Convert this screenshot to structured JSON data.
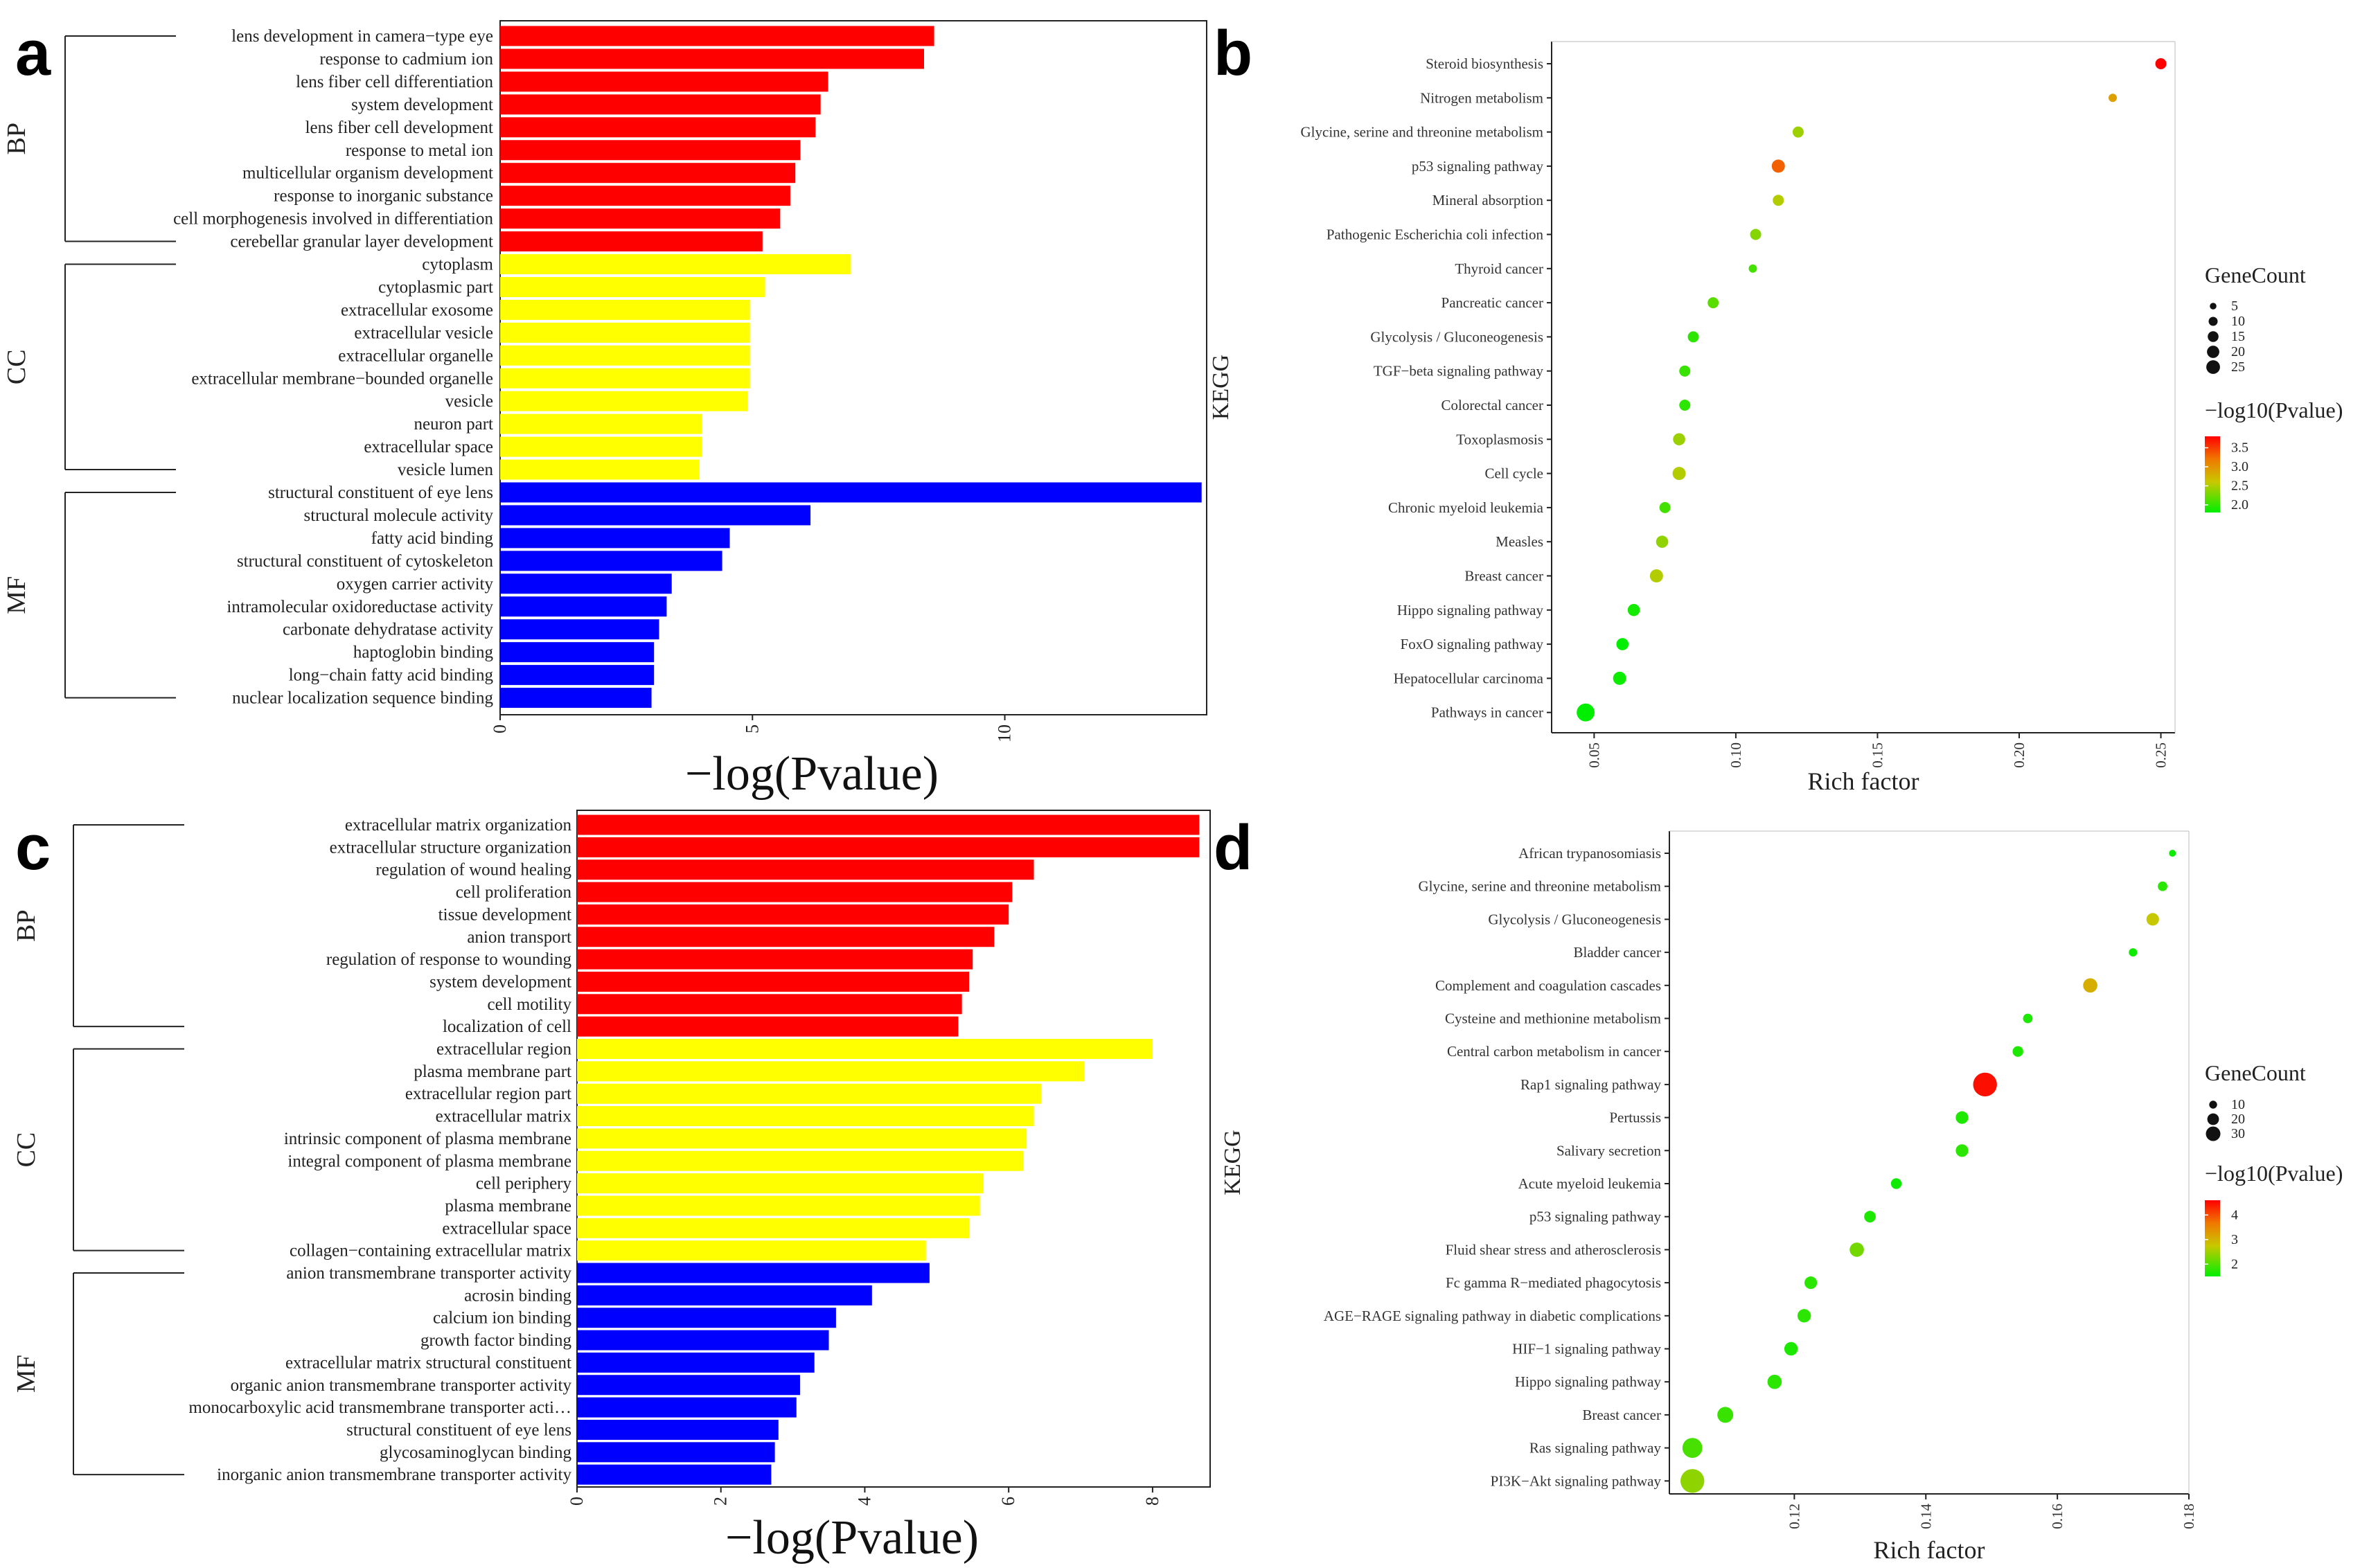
{
  "chart_data": [
    {
      "panel": "a",
      "type": "bar",
      "orientation": "horizontal",
      "xlabel": "−log(Pvalue)",
      "xlim": [
        0,
        14
      ],
      "xticks": [
        "0",
        "5",
        "10"
      ],
      "xtick_values": [
        0,
        5,
        10
      ],
      "groups": [
        {
          "name": "BP",
          "color": "#ff0000",
          "categories": [
            "lens development in camera−type eye",
            "response to cadmium ion",
            "lens fiber cell differentiation",
            "system development",
            "lens fiber cell development",
            "response to metal ion",
            "multicellular organism development",
            "response to inorganic substance",
            "cell morphogenesis involved in differentiation",
            "cerebellar granular layer development"
          ],
          "values": [
            8.6,
            8.4,
            6.5,
            6.35,
            6.25,
            5.95,
            5.85,
            5.75,
            5.55,
            5.2
          ]
        },
        {
          "name": "CC",
          "color": "#ffff00",
          "categories": [
            "cytoplasm",
            "cytoplasmic part",
            "extracellular exosome",
            "extracellular vesicle",
            "extracellular organelle",
            "extracellular membrane−bounded organelle",
            "vesicle",
            "neuron part",
            "extracellular space",
            "vesicle lumen"
          ],
          "values": [
            6.95,
            5.25,
            4.95,
            4.95,
            4.95,
            4.95,
            4.9,
            4.0,
            4.0,
            3.95
          ]
        },
        {
          "name": "MF",
          "color": "#0000ff",
          "categories": [
            "structural constituent of eye lens",
            "structural molecule activity",
            "fatty acid binding",
            "structural constituent of cytoskeleton",
            "oxygen carrier activity",
            "intramolecular oxidoreductase activity",
            "carbonate dehydratase activity",
            "haptoglobin binding",
            "long−chain fatty acid binding",
            "nuclear localization sequence binding"
          ],
          "values": [
            13.9,
            6.15,
            4.55,
            4.4,
            3.4,
            3.3,
            3.15,
            3.05,
            3.05,
            3.0
          ]
        }
      ]
    },
    {
      "panel": "b",
      "type": "scatter",
      "xlabel": "Rich factor",
      "ylabel": "KEGG",
      "xlim": [
        0.035,
        0.255
      ],
      "xticks": [
        "0.05",
        "0.10",
        "0.15",
        "0.20",
        "0.25"
      ],
      "xtick_values": [
        0.05,
        0.1,
        0.15,
        0.2,
        0.25
      ],
      "categories": [
        "Steroid biosynthesis",
        "Nitrogen metabolism",
        "Glycine, serine and threonine metabolism",
        "p53 signaling pathway",
        "Mineral absorption",
        "Pathogenic Escherichia coli infection",
        "Thyroid cancer",
        "Pancreatic cancer",
        "Glycolysis / Gluconeogenesis",
        "TGF−beta signaling pathway",
        "Colorectal cancer",
        "Toxoplasmosis",
        "Cell cycle",
        "Chronic myeloid leukemia",
        "Measles",
        "Breast cancer",
        "Hippo signaling pathway",
        "FoxO signaling pathway",
        "Hepatocellular carcinoma",
        "Pathways in cancer"
      ],
      "rich_factor": [
        0.25,
        0.233,
        0.122,
        0.115,
        0.115,
        0.107,
        0.106,
        0.092,
        0.085,
        0.082,
        0.082,
        0.08,
        0.08,
        0.075,
        0.074,
        0.072,
        0.064,
        0.06,
        0.059,
        0.047
      ],
      "gene_count": [
        4,
        2,
        4,
        6,
        4,
        4,
        2,
        4,
        4,
        4,
        4,
        5,
        6,
        4,
        5,
        6,
        5,
        5,
        6,
        12
      ],
      "neg_log10_p": [
        3.8,
        3.0,
        2.5,
        3.4,
        2.6,
        2.4,
        2.1,
        2.2,
        2.0,
        2.05,
        2.0,
        2.5,
        2.6,
        2.1,
        2.45,
        2.6,
        1.9,
        1.8,
        1.85,
        1.8
      ],
      "legend_size": {
        "title": "GeneCount",
        "labels": [
          "5",
          "10",
          "15",
          "20",
          "25"
        ],
        "values": [
          5,
          10,
          15,
          20,
          25
        ]
      },
      "legend_color": {
        "title": "−log10(Pvalue)",
        "labels": [
          "3.5",
          "3.0",
          "2.5",
          "2.0"
        ],
        "values": [
          3.5,
          3.0,
          2.5,
          2.0
        ],
        "min": 1.8,
        "max": 3.8
      }
    },
    {
      "panel": "c",
      "type": "bar",
      "orientation": "horizontal",
      "xlabel": "−log(Pvalue)",
      "xlim": [
        0,
        8.8
      ],
      "xticks": [
        "0",
        "2",
        "4",
        "6",
        "8"
      ],
      "xtick_values": [
        0,
        2,
        4,
        6,
        8
      ],
      "groups": [
        {
          "name": "BP",
          "color": "#ff0000",
          "categories": [
            "extracellular matrix organization",
            "extracellular structure organization",
            "regulation of wound healing",
            "cell proliferation",
            "tissue development",
            "anion transport",
            "regulation of response to wounding",
            "system development",
            "cell motility",
            "localization of cell"
          ],
          "values": [
            8.65,
            8.65,
            6.35,
            6.05,
            6.0,
            5.8,
            5.5,
            5.45,
            5.35,
            5.3
          ]
        },
        {
          "name": "CC",
          "color": "#ffff00",
          "categories": [
            "extracellular region",
            "plasma membrane part",
            "extracellular region part",
            "extracellular matrix",
            "intrinsic component of plasma membrane",
            "integral component of plasma membrane",
            "cell periphery",
            "plasma membrane",
            "extracellular space",
            "collagen−containing extracellular matrix"
          ],
          "values": [
            8.0,
            7.05,
            6.45,
            6.35,
            6.25,
            6.2,
            5.65,
            5.6,
            5.45,
            4.85
          ]
        },
        {
          "name": "MF",
          "color": "#0000ff",
          "categories": [
            "anion transmembrane transporter activity",
            "acrosin binding",
            "calcium ion binding",
            "growth factor binding",
            "extracellular matrix structural constituent",
            "organic anion transmembrane transporter activity",
            "monocarboxylic acid transmembrane transporter acti…",
            "structural constituent of eye lens",
            "glycosaminoglycan binding",
            "inorganic anion transmembrane transporter activity"
          ],
          "values": [
            4.9,
            4.1,
            3.6,
            3.5,
            3.3,
            3.1,
            3.05,
            2.8,
            2.75,
            2.7
          ]
        }
      ]
    },
    {
      "panel": "d",
      "type": "scatter",
      "xlabel": "Rich factor",
      "ylabel": "KEGG",
      "xlim": [
        0.101,
        0.18
      ],
      "xticks": [
        "0.12",
        "0.14",
        "0.16",
        "0.18"
      ],
      "xtick_values": [
        0.12,
        0.14,
        0.16,
        0.18
      ],
      "categories": [
        "African trypanosomiasis",
        "Glycine, serine and threonine metabolism",
        "Glycolysis / Gluconeogenesis",
        "Bladder cancer",
        "Complement and coagulation cascades",
        "Cysteine and methionine metabolism",
        "Central carbon metabolism in cancer",
        "Rap1 signaling pathway",
        "Pertussis",
        "Salivary secretion",
        "Acute myeloid leukemia",
        "p53 signaling pathway",
        "Fluid shear stress and atherosclerosis",
        "Fc gamma R−mediated phagocytosis",
        "AGE−RAGE signaling pathway in diabetic complications",
        "HIF−1 signaling pathway",
        "Hippo signaling pathway",
        "Breast cancer",
        "Ras signaling pathway",
        "PI3K−Akt signaling pathway"
      ],
      "rich_factor": [
        0.1775,
        0.176,
        0.1745,
        0.1715,
        0.165,
        0.1555,
        0.154,
        0.149,
        0.1455,
        0.1455,
        0.1355,
        0.1315,
        0.1295,
        0.1225,
        0.1215,
        0.1195,
        0.117,
        0.1095,
        0.1045,
        0.1045
      ],
      "gene_count": [
        3,
        5,
        8,
        4,
        10,
        5,
        6,
        25,
        8,
        8,
        6,
        7,
        10,
        8,
        9,
        9,
        10,
        12,
        18,
        25
      ],
      "neg_log10_p": [
        1.6,
        1.8,
        2.9,
        1.6,
        3.2,
        1.7,
        1.7,
        4.5,
        1.7,
        1.8,
        1.6,
        1.7,
        2.3,
        1.8,
        1.8,
        1.7,
        1.8,
        1.9,
        2.0,
        2.5
      ],
      "legend_size": {
        "title": "GeneCount",
        "labels": [
          "10",
          "20",
          "30"
        ],
        "values": [
          10,
          20,
          30
        ]
      },
      "legend_color": {
        "title": "−log10(Pvalue)",
        "labels": [
          "4",
          "3",
          "2"
        ],
        "values": [
          4,
          3,
          2
        ],
        "min": 1.5,
        "max": 4.6
      }
    }
  ]
}
